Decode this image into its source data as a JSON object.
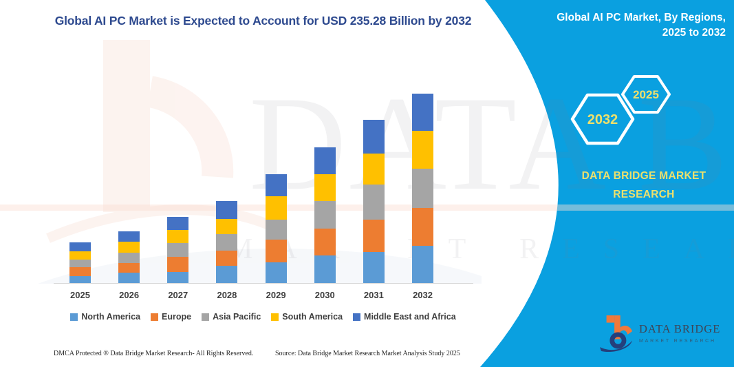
{
  "header": {
    "title": "Global AI PC Market is Expected to Account for USD 235.28 Billion by 2032"
  },
  "panel": {
    "title_line1": "Global AI PC Market, By Regions,",
    "title_line2": "2025 to 2032",
    "hexagons": [
      {
        "label": "2032"
      },
      {
        "label": "2025"
      }
    ],
    "brand_line1": "DATA BRIDGE MARKET",
    "brand_line2": "RESEARCH",
    "background_color": "#0aa0e0",
    "accent_yellow": "#ede06c"
  },
  "watermark": {
    "big_text": "DATA BRIDGE",
    "sub_text": "MARKET RESEARCH"
  },
  "logo": {
    "name": "DATA BRIDGE",
    "sub": "MARKET RESEARCH"
  },
  "footer": {
    "left": "DMCA Protected ® Data Bridge Market Research-  All Rights Reserved.",
    "right": "Source: Data Bridge Market Research  Market Analysis Study 2025"
  },
  "chart_data": {
    "type": "bar",
    "stacked": true,
    "title": "Global AI PC Market is Expected to Account for USD 235.28 Billion by 2032",
    "units": "USD Billion",
    "categories": [
      "2025",
      "2026",
      "2027",
      "2028",
      "2029",
      "2030",
      "2031",
      "2032"
    ],
    "series": [
      {
        "name": "North America",
        "color": "#5B9BD5",
        "values": [
          9.1,
          13.4,
          14.2,
          22.4,
          26.1,
          35.0,
          39.2,
          46.9
        ]
      },
      {
        "name": "Europe",
        "color": "#ED7D31",
        "values": [
          11.3,
          11.9,
          19.0,
          18.5,
          28.5,
          33.3,
          40.4,
          46.9
        ]
      },
      {
        "name": "Asia Pacific",
        "color": "#A5A5A5",
        "values": [
          9.4,
          12.8,
          17.1,
          20.7,
          24.7,
          33.6,
          42.9,
          48.3
        ]
      },
      {
        "name": "South America",
        "color": "#FFC000",
        "values": [
          10.0,
          13.6,
          16.2,
          18.5,
          29.2,
          33.5,
          39.0,
          46.9
        ]
      },
      {
        "name": "Middle East and Africa",
        "color": "#4472C4",
        "values": [
          11.3,
          13.4,
          16.2,
          21.8,
          27.0,
          33.3,
          41.2,
          46.3
        ]
      }
    ],
    "totals_estimated": [
      51.1,
      65.1,
      82.7,
      102.0,
      135.5,
      168.7,
      202.7,
      235.3
    ],
    "final_value_label": "USD 235.28 Billion by 2032",
    "xlabel": "",
    "ylabel": "",
    "value_axis_visible": false,
    "grid": false,
    "legend_position": "bottom"
  }
}
